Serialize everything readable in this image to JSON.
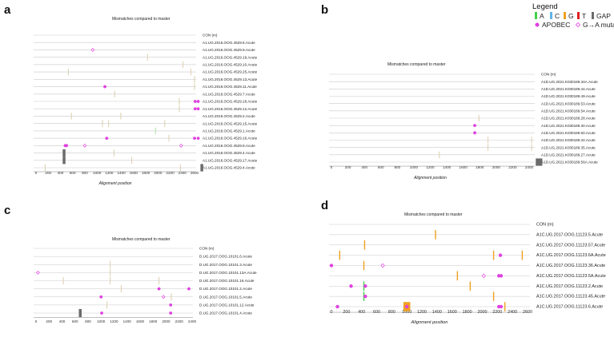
{
  "legend": {
    "title": "Legend",
    "items": [
      {
        "label": "A",
        "color": "#3fd04c"
      },
      {
        "label": "C",
        "color": "#5fb5ea"
      },
      {
        "label": "G",
        "color": "#f0a020"
      },
      {
        "label": "T",
        "color": "#e02020"
      },
      {
        "label": "GAP",
        "color": "#6b6b6b"
      }
    ],
    "markers": [
      {
        "label": "APOBEC",
        "kind": "filled",
        "color": "#e040e0"
      },
      {
        "label": "G→A mutation",
        "kind": "open",
        "color": "#e040e0"
      }
    ]
  },
  "chart_data": [
    {
      "panel": "a",
      "type": "highlighter",
      "title": "Mismatches compared to master",
      "xlabel": "Alignment position",
      "xlim": [
        0,
        2600
      ],
      "xticks": [
        0,
        200,
        400,
        600,
        800,
        1000,
        1200,
        1400,
        1600,
        1800,
        2000,
        2200,
        2400,
        2600
      ],
      "sequences": [
        {
          "name": "CON (m)",
          "marks": []
        },
        {
          "name": "A1.UG.2016.OOG.4529.6.Acute",
          "marks": []
        },
        {
          "name": "A1.UG.2016.OOG.4529.9.Acute",
          "marks": [
            {
              "pos": 930,
              "kind": "gtoa"
            }
          ]
        },
        {
          "name": "A1.UG.2016.OOG.4529.19.Acute",
          "marks": [
            {
              "pos": 1830,
              "kind": "G"
            }
          ]
        },
        {
          "name": "A1.UG.2016.OOG.4529.10.Acute",
          "marks": [
            {
              "pos": 2410,
              "kind": "G"
            }
          ]
        },
        {
          "name": "A1.UG.2016.OOG.4529.25.Acute",
          "marks": [
            {
              "pos": 530,
              "kind": "G"
            },
            {
              "pos": 2540,
              "kind": "G"
            }
          ]
        },
        {
          "name": "A1.UG.2016.OOG.4529.13.Acute",
          "marks": [
            {
              "pos": 2600,
              "kind": "G"
            }
          ]
        },
        {
          "name": "A1.UG.2016.OOG.4529.11.Acute",
          "marks": [
            {
              "pos": 1130,
              "kind": "apobec"
            },
            {
              "pos": 2600,
              "kind": "G"
            }
          ]
        },
        {
          "name": "A1.UG.2016.OOG.4529.7.Acute",
          "marks": [
            {
              "pos": 1290,
              "kind": "G"
            }
          ]
        },
        {
          "name": "A1.UG.2016.OOG.4529.18.Acute",
          "marks": [
            {
              "pos": 2350,
              "kind": "G"
            },
            {
              "pos": 2610,
              "kind": "apobec"
            },
            {
              "pos": 2660,
              "kind": "apobec"
            }
          ]
        },
        {
          "name": "A1.UG.2016.OOG.4529.12.Acute",
          "marks": [
            {
              "pos": 2350,
              "kind": "G"
            },
            {
              "pos": 2610,
              "kind": "apobec"
            },
            {
              "pos": 2660,
              "kind": "apobec"
            }
          ]
        },
        {
          "name": "A1.UG.2016.OOG.4529.2.Acute",
          "marks": [
            {
              "pos": 580,
              "kind": "G"
            },
            {
              "pos": 1390,
              "kind": "G"
            }
          ]
        },
        {
          "name": "A1.UG.2016.OOG.4529.15.Acute",
          "marks": [
            {
              "pos": 1090,
              "kind": "G"
            },
            {
              "pos": 1190,
              "kind": "G"
            },
            {
              "pos": 2110,
              "kind": "G"
            }
          ]
        },
        {
          "name": "A1.UG.2016.OOG.4529.1.Acute",
          "marks": [
            {
              "pos": 1960,
              "kind": "A"
            }
          ]
        },
        {
          "name": "A1.UG.2016.OOG.4529.16.Acute",
          "marks": [
            {
              "pos": 1160,
              "kind": "apobec"
            },
            {
              "pos": 2180,
              "kind": "G"
            },
            {
              "pos": 2600,
              "kind": "apobec"
            },
            {
              "pos": 2660,
              "kind": "apobec"
            }
          ]
        },
        {
          "name": "A1.UG.2016.OOG.4529.8.Acute",
          "marks": [
            {
              "pos": 480,
              "kind": "apobec"
            },
            {
              "pos": 500,
              "kind": "apobec"
            },
            {
              "pos": 800,
              "kind": "gtoa"
            },
            {
              "pos": 2380,
              "kind": "gtoa"
            }
          ]
        },
        {
          "name": "A1.UG.2016.OOG.4529.4.Acute",
          "marks": [
            {
              "pos": 460,
              "kind": "gap",
              "width": 30
            },
            {
              "pos": 1280,
              "kind": "G"
            }
          ]
        },
        {
          "name": "A1.UG.2016.OOG.4529.17.Acute",
          "marks": [
            {
              "pos": 460,
              "kind": "gap",
              "width": 30
            },
            {
              "pos": 1570,
              "kind": "G"
            }
          ]
        },
        {
          "name": "A1.UG.2016.OOG.4529.4.Acute",
          "marks": [
            {
              "pos": 150,
              "kind": "G"
            },
            {
              "pos": 2370,
              "kind": "G"
            },
            {
              "pos": 2720,
              "kind": "gap",
              "width": 40
            }
          ]
        }
      ]
    },
    {
      "panel": "b",
      "type": "highlighter",
      "title": "Mismatches compared to master",
      "xlabel": "Alignment position",
      "xlim": [
        0,
        2400
      ],
      "xticks": [
        0,
        200,
        400,
        600,
        800,
        1000,
        1200,
        1400,
        1600,
        1800,
        2000,
        2200,
        2400
      ],
      "sequences": [
        {
          "name": "CON (m)",
          "marks": []
        },
        {
          "name": "A1D.UG.2021.K030189.34A.Acute",
          "marks": []
        },
        {
          "name": "A1D.UG.2021.K030189.44.Acute",
          "marks": []
        },
        {
          "name": "A1D.UG.2021.K030189.49.Acute",
          "marks": []
        },
        {
          "name": "A1D.UG.2021.K030189.53.Acute",
          "marks": []
        },
        {
          "name": "A1D.UG.2021.K030189.54.Acute",
          "marks": []
        },
        {
          "name": "A1D.UG.2021.K030189.28.Acute",
          "marks": [
            {
              "pos": 1790,
              "kind": "G"
            }
          ]
        },
        {
          "name": "A1D.UG.2021.K030189.30.Acute",
          "marks": [
            {
              "pos": 1740,
              "kind": "apobec"
            }
          ]
        },
        {
          "name": "A1D.UG.2021.K030189.60.Acute",
          "marks": [
            {
              "pos": 1740,
              "kind": "apobec"
            }
          ]
        },
        {
          "name": "A1D.UG.2021.K030189.34.Acute",
          "marks": [
            {
              "pos": 1900,
              "kind": "G"
            },
            {
              "pos": 2430,
              "kind": "G"
            }
          ]
        },
        {
          "name": "A1D.UG.2021.K030189.35.Acute",
          "marks": [
            {
              "pos": 1900,
              "kind": "G"
            },
            {
              "pos": 2430,
              "kind": "G"
            }
          ]
        },
        {
          "name": "A1D.UG.2021.K030189.27.Acute",
          "marks": [
            {
              "pos": 1310,
              "kind": "G"
            }
          ]
        },
        {
          "name": "A1D.UG.2021.K030189.56A.Acute",
          "marks": [
            {
              "pos": 2520,
              "kind": "gap",
              "width": 80
            }
          ]
        }
      ]
    },
    {
      "panel": "c",
      "type": "highlighter",
      "title": "Mismatches compared to master",
      "xlabel": "",
      "xlim": [
        0,
        2400
      ],
      "xticks": [
        0,
        200,
        400,
        600,
        800,
        1000,
        1200,
        1400,
        1600,
        1800,
        2000,
        2200,
        2400
      ],
      "sequences": [
        {
          "name": "CON (m)",
          "marks": []
        },
        {
          "name": "D.UG.2017.OOG.10101.6.Acute",
          "marks": []
        },
        {
          "name": "D.UG.2017.OOG.10101.3.Acute",
          "marks": [
            {
              "pos": 1140,
              "kind": "G"
            }
          ]
        },
        {
          "name": "D.UG.2017.OOG.10101.13A.Acute",
          "marks": [
            {
              "pos": 30,
              "kind": "gtoa"
            },
            {
              "pos": 1140,
              "kind": "G"
            }
          ]
        },
        {
          "name": "D.UG.2017.OOG.10101.16.Acute",
          "marks": [
            {
              "pos": 420,
              "kind": "G"
            },
            {
              "pos": 1140,
              "kind": "G"
            },
            {
              "pos": 1890,
              "kind": "G"
            }
          ]
        },
        {
          "name": "D.UG.2017.OOG.10101.2.Acute",
          "marks": [
            {
              "pos": 1310,
              "kind": "G"
            },
            {
              "pos": 1890,
              "kind": "apobec"
            },
            {
              "pos": 2350,
              "kind": "apobec"
            }
          ]
        },
        {
          "name": "D.UG.2017.OOG.10101.5.Acute",
          "marks": [
            {
              "pos": 1000,
              "kind": "apobec"
            },
            {
              "pos": 1960,
              "kind": "gtoa"
            },
            {
              "pos": 2080,
              "kind": "G"
            }
          ]
        },
        {
          "name": "D.UG.2017.OOG.10101.12.Acute",
          "marks": [
            {
              "pos": 1090,
              "kind": "G"
            },
            {
              "pos": 2070,
              "kind": "apobec"
            }
          ]
        },
        {
          "name": "D.UG.2017.OOG.10101.4.Acute",
          "marks": [
            {
              "pos": 680,
              "kind": "gap",
              "width": 40
            },
            {
              "pos": 1010,
              "kind": "apobec"
            },
            {
              "pos": 2070,
              "kind": "apobec"
            }
          ]
        }
      ]
    },
    {
      "panel": "d",
      "type": "highlighter",
      "title": "Mismatches compared to master",
      "xlabel": "Alignment position",
      "xlim": [
        0,
        2600
      ],
      "xticks": [
        0,
        200,
        400,
        600,
        800,
        1000,
        1200,
        1400,
        1600,
        1800,
        2000,
        2200,
        2400,
        2600
      ],
      "sequences": [
        {
          "name": "CON (m)",
          "marks": []
        },
        {
          "name": "A1C.UG.2017.OOG.11123.5.Acute",
          "marks": [
            {
              "pos": 1380,
              "kind": "G"
            }
          ]
        },
        {
          "name": "A1C.UG.2017.OOG.11123.57.Acute",
          "marks": [
            {
              "pos": 440,
              "kind": "G"
            }
          ]
        },
        {
          "name": "A1C.UG.2017.OOG.11123.6A.Acute",
          "marks": [
            {
              "pos": 110,
              "kind": "G"
            },
            {
              "pos": 2150,
              "kind": "G"
            },
            {
              "pos": 2240,
              "kind": "apobec"
            },
            {
              "pos": 2530,
              "kind": "G"
            }
          ]
        },
        {
          "name": "A1C.UG.2017.OOG.11123.36.Acute",
          "marks": [
            {
              "pos": 0,
              "kind": "apobec"
            },
            {
              "pos": 430,
              "kind": "G"
            },
            {
              "pos": 680,
              "kind": "gtoa"
            }
          ]
        },
        {
          "name": "A1C.UG.2017.OOG.11123.5A.Acute",
          "marks": [
            {
              "pos": 1670,
              "kind": "G"
            },
            {
              "pos": 2020,
              "kind": "gtoa"
            },
            {
              "pos": 2220,
              "kind": "apobec"
            },
            {
              "pos": 2250,
              "kind": "apobec"
            }
          ]
        },
        {
          "name": "A1C.UG.2017.OOG.11123.2.Acute",
          "marks": [
            {
              "pos": 260,
              "kind": "apobec"
            },
            {
              "pos": 430,
              "kind": "A"
            },
            {
              "pos": 450,
              "kind": "apobec"
            },
            {
              "pos": 1840,
              "kind": "G"
            }
          ]
        },
        {
          "name": "A1C.UG.2017.OOG.11123.45.Acute",
          "marks": [
            {
              "pos": 430,
              "kind": "A"
            },
            {
              "pos": 450,
              "kind": "apobec"
            },
            {
              "pos": 2150,
              "kind": "G"
            }
          ]
        },
        {
          "name": "A1C.UG.2017.OOG.11123.6.Acute",
          "marks": [
            {
              "pos": 80,
              "kind": "apobec"
            },
            {
              "pos": 1000,
              "kind": "G",
              "width": 30
            },
            {
              "pos": 1000,
              "kind": "apobec"
            },
            {
              "pos": 2220,
              "kind": "apobec"
            },
            {
              "pos": 2250,
              "kind": "apobec"
            },
            {
              "pos": 2300,
              "kind": "G"
            }
          ]
        }
      ]
    }
  ]
}
